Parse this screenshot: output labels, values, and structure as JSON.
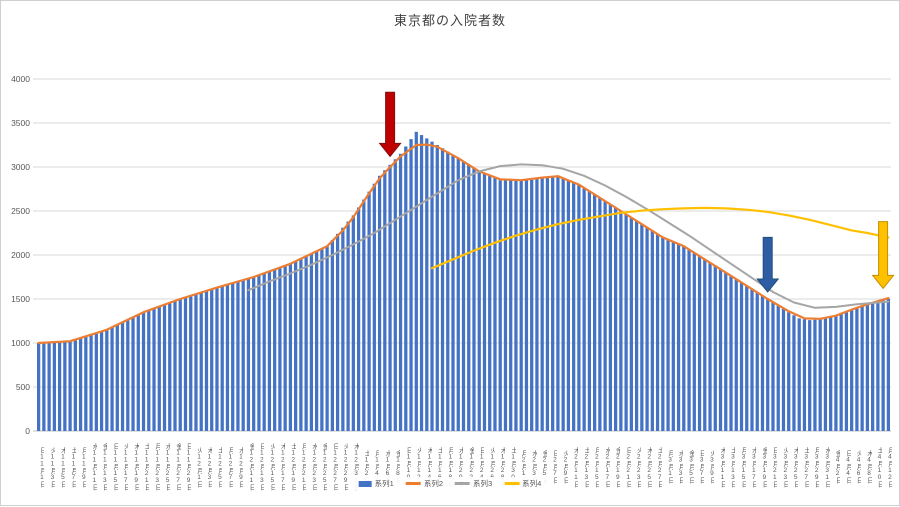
{
  "chart": {
    "title": "東京都の入院者数",
    "y_axis": {
      "min": 0,
      "max": 4000,
      "step": 500,
      "ticks": [
        "0",
        "500",
        "1000",
        "1500",
        "2000",
        "2500",
        "3000",
        "3500",
        "4000"
      ]
    },
    "x_axis": {
      "label_interval_days": 2,
      "labels": [
        "日11月1日",
        "火11月3日",
        "木11月5日",
        "土11月7日",
        "月11月9日",
        "水11月11日",
        "金11月13日",
        "日11月15日",
        "火11月17日",
        "木11月19日",
        "土11月21日",
        "月11月23日",
        "水11月25日",
        "金11月27日",
        "日11月29日",
        "火12月1日",
        "木12月3日",
        "土12月5日",
        "月12月7日",
        "水12月9日",
        "金12月11日",
        "日12月13日",
        "火12月15日",
        "木12月17日",
        "土12月19日",
        "月12月21日",
        "水12月23日",
        "金12月25日",
        "日12月27日",
        "火12月29日",
        "木12月31日",
        "土1月2日",
        "月1月4日",
        "水1月6日",
        "金1月8日",
        "日1月10日",
        "火1月12日",
        "木1月14日",
        "土1月16日",
        "月1月18日",
        "水1月20日",
        "金1月22日",
        "日1月24日",
        "火1月26日",
        "木1月28日",
        "土1月30日",
        "月2月1日",
        "水2月3日",
        "金2月5日",
        "日2月7日",
        "火2月9日",
        "木2月11日",
        "土2月13日",
        "月2月15日",
        "水2月17日",
        "金2月19日",
        "日2月21日",
        "火2月23日",
        "木2月25日",
        "土2月27日",
        "月3月1日",
        "水3月3日",
        "金3月5日",
        "日3月7日",
        "火3月9日",
        "木3月11日",
        "土3月13日",
        "月3月15日",
        "水3月17日",
        "金3月19日",
        "日3月21日",
        "火3月23日",
        "木3月25日",
        "土3月27日",
        "月3月29日",
        "水3月31日",
        "金4月2日",
        "日4月4日",
        "火4月6日",
        "木4月8日",
        "土4月10日",
        "月4月12日"
      ]
    },
    "legend": {
      "position": "bottom",
      "items": [
        {
          "label": "系列1",
          "color": "#4472C4",
          "marker": "bar"
        },
        {
          "label": "系列2",
          "color": "#ED7D31",
          "marker": "line"
        },
        {
          "label": "系列3",
          "color": "#A5A5A5",
          "marker": "line"
        },
        {
          "label": "系列4",
          "color": "#FFC000",
          "marker": "line"
        }
      ]
    },
    "colors": {
      "bar": "#4472C4",
      "line2": "#ED7D31",
      "line3": "#A5A5A5",
      "line4": "#FFC000",
      "grid": "#D9D9D9",
      "axis": "#BFBFBF",
      "tick_text": "#595959",
      "title_text": "#404040"
    }
  },
  "chart_data": {
    "type": "bar",
    "title": "東京都の入院者数",
    "xlabel": "",
    "ylabel": "",
    "ylim": [
      0,
      4000
    ],
    "grid": true,
    "x_start_label": "11月1日",
    "x_end_label": "4月12日",
    "days": 163,
    "bar_series": {
      "name": "系列1",
      "color": "#4472C4",
      "values": [
        1000,
        1003,
        1007,
        1010,
        1013,
        1017,
        1020,
        1039,
        1057,
        1076,
        1094,
        1113,
        1131,
        1150,
        1179,
        1207,
        1236,
        1264,
        1293,
        1321,
        1350,
        1371,
        1393,
        1414,
        1436,
        1457,
        1479,
        1500,
        1519,
        1537,
        1556,
        1574,
        1593,
        1611,
        1630,
        1647,
        1664,
        1681,
        1699,
        1716,
        1733,
        1750,
        1771,
        1793,
        1814,
        1836,
        1857,
        1879,
        1900,
        1929,
        1957,
        1986,
        2014,
        2043,
        2071,
        2100,
        2170,
        2240,
        2310,
        2380,
        2450,
        2540,
        2630,
        2720,
        2810,
        2900,
        2963,
        3025,
        3088,
        3150,
        3233,
        3317,
        3400,
        3363,
        3325,
        3288,
        3250,
        3213,
        3175,
        3138,
        3100,
        3063,
        3025,
        2988,
        2950,
        2925,
        2900,
        2875,
        2850,
        2850,
        2850,
        2850,
        2850,
        2858,
        2865,
        2873,
        2880,
        2887,
        2893,
        2900,
        2875,
        2850,
        2825,
        2800,
        2763,
        2725,
        2688,
        2650,
        2613,
        2575,
        2538,
        2500,
        2463,
        2425,
        2388,
        2350,
        2313,
        2275,
        2238,
        2200,
        2175,
        2150,
        2125,
        2100,
        2063,
        2025,
        1988,
        1950,
        1913,
        1875,
        1838,
        1800,
        1763,
        1725,
        1688,
        1650,
        1613,
        1575,
        1538,
        1500,
        1463,
        1425,
        1388,
        1350,
        1315,
        1280,
        1270,
        1260,
        1265,
        1270,
        1285,
        1300,
        1317,
        1333,
        1350,
        1373,
        1397,
        1420,
        1437,
        1453,
        1470,
        1485,
        1500
      ]
    },
    "line_series": [
      {
        "name": "系列2",
        "color": "#ED7D31",
        "width": 2.2,
        "points": [
          [
            0,
            1000
          ],
          [
            6,
            1020
          ],
          [
            13,
            1150
          ],
          [
            20,
            1350
          ],
          [
            27,
            1500
          ],
          [
            34,
            1630
          ],
          [
            41,
            1750
          ],
          [
            48,
            1900
          ],
          [
            55,
            2100
          ],
          [
            58,
            2280
          ],
          [
            60,
            2430
          ],
          [
            63,
            2700
          ],
          [
            65,
            2870
          ],
          [
            67,
            3000
          ],
          [
            69,
            3120
          ],
          [
            72,
            3250
          ],
          [
            74,
            3255
          ],
          [
            76,
            3230
          ],
          [
            80,
            3100
          ],
          [
            84,
            2950
          ],
          [
            88,
            2860
          ],
          [
            92,
            2850
          ],
          [
            96,
            2880
          ],
          [
            99,
            2895
          ],
          [
            103,
            2800
          ],
          [
            107,
            2650
          ],
          [
            111,
            2500
          ],
          [
            115,
            2350
          ],
          [
            119,
            2200
          ],
          [
            123,
            2100
          ],
          [
            127,
            1950
          ],
          [
            131,
            1800
          ],
          [
            135,
            1650
          ],
          [
            139,
            1500
          ],
          [
            143,
            1360
          ],
          [
            146,
            1280
          ],
          [
            149,
            1275
          ],
          [
            152,
            1310
          ],
          [
            155,
            1380
          ],
          [
            158,
            1440
          ],
          [
            162,
            1510
          ]
        ]
      },
      {
        "name": "系列3",
        "color": "#A5A5A5",
        "width": 2,
        "points": [
          [
            40,
            1600
          ],
          [
            44,
            1700
          ],
          [
            48,
            1790
          ],
          [
            52,
            1890
          ],
          [
            56,
            2000
          ],
          [
            60,
            2120
          ],
          [
            64,
            2250
          ],
          [
            68,
            2400
          ],
          [
            72,
            2550
          ],
          [
            76,
            2700
          ],
          [
            80,
            2850
          ],
          [
            84,
            2950
          ],
          [
            88,
            3010
          ],
          [
            92,
            3030
          ],
          [
            96,
            3020
          ],
          [
            100,
            2980
          ],
          [
            104,
            2900
          ],
          [
            108,
            2790
          ],
          [
            112,
            2660
          ],
          [
            116,
            2520
          ],
          [
            120,
            2370
          ],
          [
            124,
            2220
          ],
          [
            128,
            2060
          ],
          [
            132,
            1900
          ],
          [
            136,
            1740
          ],
          [
            140,
            1580
          ],
          [
            144,
            1460
          ],
          [
            148,
            1400
          ],
          [
            152,
            1410
          ],
          [
            156,
            1440
          ],
          [
            160,
            1460
          ],
          [
            162,
            1470
          ]
        ]
      },
      {
        "name": "系列4",
        "color": "#FFC000",
        "width": 2.2,
        "points": [
          [
            75,
            1850
          ],
          [
            79,
            1950
          ],
          [
            83,
            2050
          ],
          [
            87,
            2140
          ],
          [
            91,
            2220
          ],
          [
            95,
            2290
          ],
          [
            99,
            2350
          ],
          [
            103,
            2400
          ],
          [
            107,
            2440
          ],
          [
            111,
            2480
          ],
          [
            115,
            2505
          ],
          [
            119,
            2520
          ],
          [
            123,
            2530
          ],
          [
            127,
            2535
          ],
          [
            131,
            2530
          ],
          [
            135,
            2515
          ],
          [
            139,
            2490
          ],
          [
            143,
            2450
          ],
          [
            147,
            2400
          ],
          [
            151,
            2340
          ],
          [
            155,
            2280
          ],
          [
            158,
            2250
          ],
          [
            162,
            2200
          ]
        ]
      }
    ],
    "annotations": [
      {
        "name": "red-arrow",
        "shape": "down-arrow",
        "fill": "#C00000",
        "stroke": "#7F1010",
        "day": 67,
        "value_top": 3850,
        "value_tip": 3120
      },
      {
        "name": "blue-arrow",
        "shape": "down-arrow",
        "fill": "#2E5DA6",
        "stroke": "#1F4E79",
        "day": 139,
        "value_top": 2200,
        "value_tip": 1580
      },
      {
        "name": "yellow-arrow",
        "shape": "down-arrow",
        "fill": "#FFC000",
        "stroke": "#BF9000",
        "day": 161,
        "value_top": 2380,
        "value_tip": 1620
      }
    ]
  }
}
